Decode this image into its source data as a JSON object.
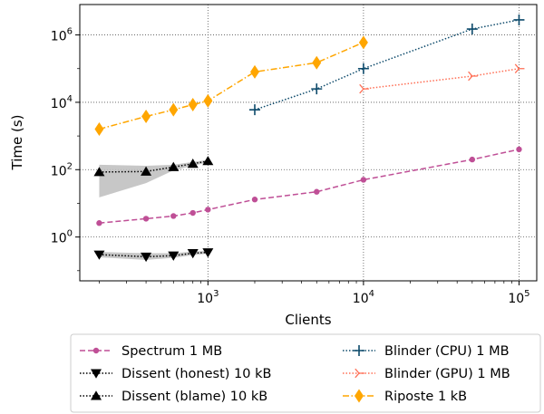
{
  "chart_data": {
    "type": "line",
    "xlabel": "Clients",
    "ylabel": "Time (s)",
    "xscale": "log",
    "yscale": "log",
    "xlim": [
      150,
      130000
    ],
    "ylim": [
      0.05,
      8000000
    ],
    "x_ticks": [
      {
        "value": 1000,
        "base": "10",
        "exp": "3"
      },
      {
        "value": 10000,
        "base": "10",
        "exp": "4"
      },
      {
        "value": 100000,
        "base": "10",
        "exp": "5"
      }
    ],
    "y_ticks": [
      {
        "value": 1,
        "base": "10",
        "exp": "0"
      },
      {
        "value": 100,
        "base": "10",
        "exp": "2"
      },
      {
        "value": 10000,
        "base": "10",
        "exp": "4"
      },
      {
        "value": 1000000,
        "base": "10",
        "exp": "6"
      }
    ],
    "grid": "major, dotted",
    "legend_position": "bottom, outside the axes, two columns",
    "series": [
      {
        "name": "Spectrum 1 MB",
        "color": "#bf4f96",
        "marker": "circle",
        "linestyle": "dashed",
        "x": [
          200,
          400,
          600,
          800,
          1000,
          2000,
          5000,
          10000,
          50000,
          100000
        ],
        "y": [
          2.6,
          3.5,
          4.2,
          5.2,
          6.5,
          13,
          22,
          50,
          200,
          400
        ]
      },
      {
        "name": "Dissent (honest) 10 kB",
        "color": "#000000",
        "marker": "triangle-down",
        "linestyle": "dotted",
        "x": [
          200,
          400,
          600,
          800,
          1000
        ],
        "y": [
          0.3,
          0.26,
          0.28,
          0.33,
          0.35
        ],
        "band_low": [
          0.25,
          0.21,
          0.24,
          0.29,
          0.32
        ],
        "band_high": [
          0.36,
          0.33,
          0.33,
          0.37,
          0.39
        ]
      },
      {
        "name": "Dissent (blame) 10 kB",
        "color": "#000000",
        "marker": "triangle-up",
        "linestyle": "dotted",
        "x": [
          200,
          400,
          600,
          800,
          1000
        ],
        "y": [
          85,
          88,
          120,
          150,
          180
        ],
        "band_low": [
          15,
          40,
          95,
          130,
          165
        ],
        "band_high": [
          140,
          130,
          140,
          170,
          195
        ]
      },
      {
        "name": "Blinder (CPU) 1 MB",
        "color": "#0d4a6b",
        "marker": "plus",
        "linestyle": "dotted",
        "x": [
          2000,
          5000,
          10000,
          50000,
          100000
        ],
        "y": [
          6000,
          25000,
          100000,
          1500000,
          2800000
        ]
      },
      {
        "name": "Blinder (GPU) 1 MB",
        "color": "#ff6e54",
        "marker": "tri-right",
        "linestyle": "dotted",
        "x": [
          10000,
          50000,
          100000
        ],
        "y": [
          25000,
          60000,
          100000
        ]
      },
      {
        "name": "Riposte 1 kB",
        "color": "#ffa600",
        "marker": "thin-diamond",
        "linestyle": "dashdot",
        "x": [
          200,
          400,
          600,
          800,
          1000,
          2000,
          5000,
          10000
        ],
        "y": [
          1600,
          3800,
          6000,
          8500,
          11000,
          80000,
          150000,
          600000
        ]
      }
    ],
    "legend_columns": [
      [
        "Spectrum 1 MB",
        "Dissent (honest) 10 kB",
        "Dissent (blame) 10 kB"
      ],
      [
        "Blinder (CPU) 1 MB",
        "Blinder (GPU) 1 MB",
        "Riposte 1 kB"
      ]
    ]
  }
}
